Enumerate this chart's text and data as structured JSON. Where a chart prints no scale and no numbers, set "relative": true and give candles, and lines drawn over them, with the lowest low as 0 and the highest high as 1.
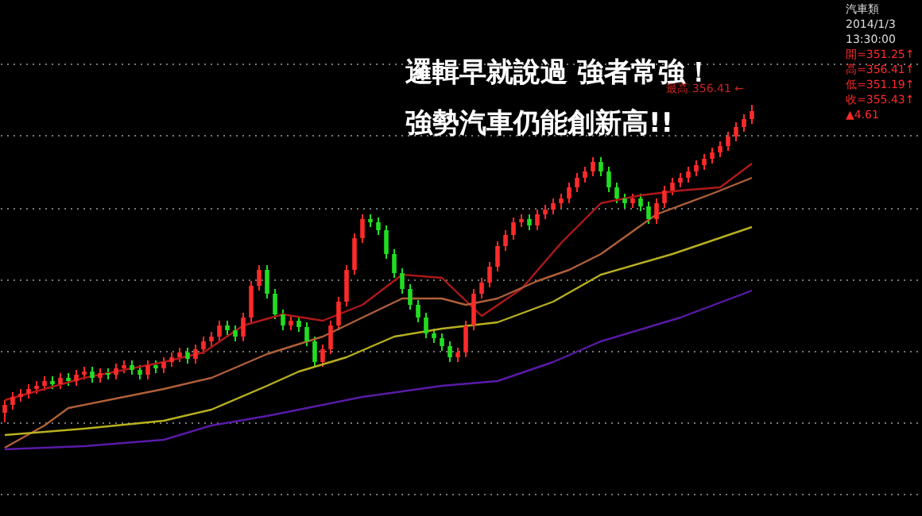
{
  "chart_data": {
    "type": "candlestick",
    "relative": true,
    "grid": true,
    "title": "邏輯早就說過 強者常強！",
    "subtitle": "強勢汽車仍能創新高!!",
    "annotations": [
      "最高 356.41 ←",
      "汽車類",
      "2014/1/3",
      "13:30:00",
      "開=351.25↑",
      "高=356.41↑",
      "低=351.19↑",
      "收=355.43↑",
      "▲4.61"
    ],
    "categories": [
      null,
      null,
      null,
      null,
      null,
      null,
      null,
      null,
      null,
      null,
      null,
      null,
      null,
      null,
      null,
      null,
      null,
      null,
      null,
      null,
      null,
      null,
      null,
      null,
      null,
      null,
      null,
      null,
      null,
      null,
      null,
      null,
      null,
      null,
      null,
      null,
      null,
      null,
      null,
      null,
      null,
      null,
      null,
      null,
      null,
      null,
      null,
      null,
      null,
      null,
      null,
      null,
      null,
      null,
      null,
      null,
      null,
      null,
      null,
      null,
      null,
      null,
      null,
      null,
      null,
      null,
      null,
      null,
      null,
      null,
      null,
      null,
      null,
      null,
      null,
      null,
      null,
      null,
      null,
      null,
      null,
      null,
      null,
      null,
      null,
      null,
      null,
      null,
      null,
      null,
      null,
      null,
      null,
      null,
      null
    ],
    "ohlc": [
      [
        0.03,
        0.07,
        0,
        0.055
      ],
      [
        0.055,
        0.095,
        0.04,
        0.08
      ],
      [
        0.08,
        0.105,
        0.065,
        0.09
      ],
      [
        0.09,
        0.12,
        0.075,
        0.105
      ],
      [
        0.105,
        0.13,
        0.09,
        0.115
      ],
      [
        0.115,
        0.145,
        0.1,
        0.13
      ],
      [
        0.13,
        0.145,
        0.105,
        0.12
      ],
      [
        0.12,
        0.155,
        0.105,
        0.14
      ],
      [
        0.14,
        0.155,
        0.115,
        0.13
      ],
      [
        0.13,
        0.165,
        0.115,
        0.15
      ],
      [
        0.15,
        0.175,
        0.135,
        0.16
      ],
      [
        0.16,
        0.175,
        0.125,
        0.14
      ],
      [
        0.14,
        0.17,
        0.125,
        0.155
      ],
      [
        0.155,
        0.17,
        0.135,
        0.15
      ],
      [
        0.15,
        0.185,
        0.135,
        0.17
      ],
      [
        0.17,
        0.195,
        0.155,
        0.18
      ],
      [
        0.18,
        0.195,
        0.15,
        0.165
      ],
      [
        0.165,
        0.18,
        0.135,
        0.15
      ],
      [
        0.15,
        0.195,
        0.135,
        0.18
      ],
      [
        0.18,
        0.195,
        0.155,
        0.17
      ],
      [
        0.17,
        0.205,
        0.155,
        0.19
      ],
      [
        0.19,
        0.22,
        0.175,
        0.205
      ],
      [
        0.205,
        0.235,
        0.19,
        0.22
      ],
      [
        0.22,
        0.235,
        0.185,
        0.2
      ],
      [
        0.2,
        0.245,
        0.185,
        0.23
      ],
      [
        0.23,
        0.27,
        0.215,
        0.255
      ],
      [
        0.255,
        0.285,
        0.24,
        0.27
      ],
      [
        0.27,
        0.32,
        0.255,
        0.305
      ],
      [
        0.305,
        0.32,
        0.275,
        0.29
      ],
      [
        0.29,
        0.305,
        0.255,
        0.27
      ],
      [
        0.27,
        0.345,
        0.255,
        0.33
      ],
      [
        0.33,
        0.445,
        0.315,
        0.43
      ],
      [
        0.43,
        0.495,
        0.415,
        0.48
      ],
      [
        0.48,
        0.495,
        0.39,
        0.405
      ],
      [
        0.405,
        0.42,
        0.325,
        0.34
      ],
      [
        0.34,
        0.355,
        0.29,
        0.305
      ],
      [
        0.305,
        0.335,
        0.29,
        0.32
      ],
      [
        0.32,
        0.335,
        0.285,
        0.3
      ],
      [
        0.3,
        0.315,
        0.24,
        0.255
      ],
      [
        0.255,
        0.27,
        0.175,
        0.19
      ],
      [
        0.19,
        0.245,
        0.175,
        0.23
      ],
      [
        0.23,
        0.32,
        0.215,
        0.305
      ],
      [
        0.305,
        0.395,
        0.29,
        0.38
      ],
      [
        0.38,
        0.495,
        0.365,
        0.48
      ],
      [
        0.48,
        0.595,
        0.465,
        0.58
      ],
      [
        0.58,
        0.655,
        0.565,
        0.64
      ],
      [
        0.64,
        0.655,
        0.615,
        0.63
      ],
      [
        0.63,
        0.645,
        0.59,
        0.605
      ],
      [
        0.605,
        0.62,
        0.515,
        0.53
      ],
      [
        0.53,
        0.545,
        0.455,
        0.47
      ],
      [
        0.47,
        0.485,
        0.405,
        0.42
      ],
      [
        0.42,
        0.435,
        0.355,
        0.37
      ],
      [
        0.37,
        0.385,
        0.315,
        0.33
      ],
      [
        0.33,
        0.345,
        0.265,
        0.28
      ],
      [
        0.28,
        0.295,
        0.25,
        0.265
      ],
      [
        0.265,
        0.28,
        0.225,
        0.24
      ],
      [
        0.24,
        0.255,
        0.19,
        0.205
      ],
      [
        0.205,
        0.235,
        0.19,
        0.22
      ],
      [
        0.22,
        0.32,
        0.205,
        0.305
      ],
      [
        0.305,
        0.42,
        0.29,
        0.405
      ],
      [
        0.405,
        0.455,
        0.39,
        0.44
      ],
      [
        0.44,
        0.505,
        0.425,
        0.49
      ],
      [
        0.49,
        0.57,
        0.475,
        0.555
      ],
      [
        0.555,
        0.605,
        0.54,
        0.59
      ],
      [
        0.59,
        0.645,
        0.575,
        0.63
      ],
      [
        0.63,
        0.655,
        0.615,
        0.64
      ],
      [
        0.64,
        0.655,
        0.605,
        0.62
      ],
      [
        0.62,
        0.67,
        0.605,
        0.655
      ],
      [
        0.655,
        0.685,
        0.64,
        0.67
      ],
      [
        0.67,
        0.705,
        0.655,
        0.69
      ],
      [
        0.69,
        0.72,
        0.675,
        0.705
      ],
      [
        0.705,
        0.755,
        0.69,
        0.74
      ],
      [
        0.74,
        0.785,
        0.725,
        0.77
      ],
      [
        0.77,
        0.805,
        0.755,
        0.79
      ],
      [
        0.79,
        0.835,
        0.775,
        0.82
      ],
      [
        0.82,
        0.835,
        0.775,
        0.79
      ],
      [
        0.79,
        0.805,
        0.725,
        0.74
      ],
      [
        0.74,
        0.755,
        0.69,
        0.705
      ],
      [
        0.705,
        0.72,
        0.675,
        0.69
      ],
      [
        0.69,
        0.72,
        0.675,
        0.705
      ],
      [
        0.705,
        0.72,
        0.665,
        0.68
      ],
      [
        0.68,
        0.695,
        0.625,
        0.64
      ],
      [
        0.64,
        0.705,
        0.625,
        0.69
      ],
      [
        0.69,
        0.745,
        0.675,
        0.73
      ],
      [
        0.73,
        0.77,
        0.715,
        0.755
      ],
      [
        0.755,
        0.785,
        0.74,
        0.77
      ],
      [
        0.77,
        0.805,
        0.755,
        0.79
      ],
      [
        0.79,
        0.825,
        0.775,
        0.81
      ],
      [
        0.81,
        0.845,
        0.795,
        0.83
      ],
      [
        0.83,
        0.865,
        0.815,
        0.85
      ],
      [
        0.85,
        0.885,
        0.835,
        0.87
      ],
      [
        0.87,
        0.915,
        0.855,
        0.9
      ],
      [
        0.9,
        0.945,
        0.885,
        0.93
      ],
      [
        0.93,
        0.97,
        0.915,
        0.955
      ],
      [
        0.955,
        1,
        0.94,
        0.98
      ]
    ],
    "series": [
      {
        "type": "line",
        "color": "#b01818",
        "values": [
          0.07,
          null,
          null,
          null,
          null,
          0.105,
          null,
          null,
          null,
          null,
          0.14,
          null,
          null,
          null,
          null,
          0.165,
          null,
          null,
          null,
          null,
          0.19,
          null,
          null,
          null,
          null,
          0.22,
          null,
          null,
          null,
          null,
          0.305,
          null,
          null,
          null,
          null,
          0.34,
          null,
          null,
          null,
          null,
          0.32,
          null,
          null,
          null,
          null,
          0.37,
          null,
          null,
          null,
          null,
          0.465,
          null,
          null,
          null,
          null,
          0.455,
          null,
          null,
          null,
          null,
          0.335,
          null,
          null,
          null,
          null,
          0.42,
          null,
          null,
          null,
          null,
          0.565,
          null,
          null,
          null,
          null,
          0.69,
          null,
          null,
          null,
          null,
          0.715,
          null,
          null,
          null,
          null,
          0.73,
          null,
          null,
          null,
          null,
          0.74,
          null,
          null,
          null,
          0.815
        ]
      },
      {
        "type": "line",
        "color": "#b0603a",
        "values": [
          -0.08,
          null,
          null,
          null,
          null,
          -0.01,
          null,
          null,
          0.045,
          null,
          null,
          null,
          null,
          0.07,
          null,
          null,
          null,
          null,
          null,
          null,
          0.105,
          null,
          null,
          null,
          null,
          null,
          0.14,
          null,
          null,
          null,
          null,
          null,
          null,
          0.215,
          null,
          null,
          null,
          null,
          null,
          null,
          0.27,
          null,
          null,
          null,
          null,
          0.33,
          null,
          null,
          null,
          null,
          0.39,
          null,
          null,
          null,
          null,
          0.39,
          null,
          null,
          0.37,
          null,
          null,
          null,
          0.39,
          null,
          null,
          null,
          null,
          0.445,
          null,
          null,
          null,
          0.48,
          null,
          null,
          null,
          0.53,
          null,
          null,
          null,
          null,
          null,
          null,
          0.655,
          null,
          null,
          null,
          null,
          null,
          null,
          0.72,
          null,
          null,
          null,
          null,
          0.77
        ]
      },
      {
        "type": "line",
        "color": "#b8b020",
        "values": [
          -0.04,
          null,
          null,
          null,
          null,
          null,
          null,
          null,
          null,
          null,
          -0.02,
          null,
          null,
          null,
          null,
          null,
          null,
          null,
          null,
          null,
          0.005,
          null,
          null,
          null,
          null,
          null,
          0.04,
          null,
          null,
          null,
          null,
          null,
          null,
          0.115,
          null,
          null,
          null,
          0.16,
          null,
          null,
          null,
          null,
          null,
          0.205,
          null,
          null,
          null,
          null,
          null,
          0.27,
          null,
          null,
          null,
          null,
          null,
          0.295,
          null,
          null,
          null,
          null,
          null,
          null,
          0.315,
          null,
          null,
          null,
          null,
          null,
          null,
          0.38,
          null,
          null,
          null,
          null,
          null,
          0.465,
          null,
          null,
          null,
          null,
          null,
          null,
          null,
          null,
          0.53,
          null,
          null,
          null,
          null,
          null,
          null,
          null,
          null,
          null,
          0.615
        ]
      },
      {
        "type": "line",
        "color": "#5a1aa8",
        "values": [
          -0.085,
          null,
          null,
          null,
          null,
          null,
          null,
          null,
          null,
          null,
          -0.075,
          null,
          null,
          null,
          null,
          null,
          null,
          null,
          null,
          null,
          -0.055,
          null,
          null,
          null,
          null,
          null,
          -0.01,
          null,
          null,
          null,
          null,
          null,
          null,
          0.02,
          null,
          null,
          null,
          null,
          null,
          0.05,
          null,
          null,
          null,
          null,
          null,
          0.08,
          null,
          null,
          null,
          null,
          null,
          null,
          null,
          null,
          null,
          0.115,
          null,
          null,
          null,
          null,
          null,
          null,
          0.13,
          null,
          null,
          null,
          null,
          null,
          null,
          0.19,
          null,
          null,
          null,
          null,
          null,
          0.255,
          null,
          null,
          null,
          null,
          null,
          null,
          null,
          null,
          null,
          0.33,
          null,
          null,
          null,
          null,
          null,
          null,
          null,
          null,
          0.415
        ]
      }
    ]
  }
}
